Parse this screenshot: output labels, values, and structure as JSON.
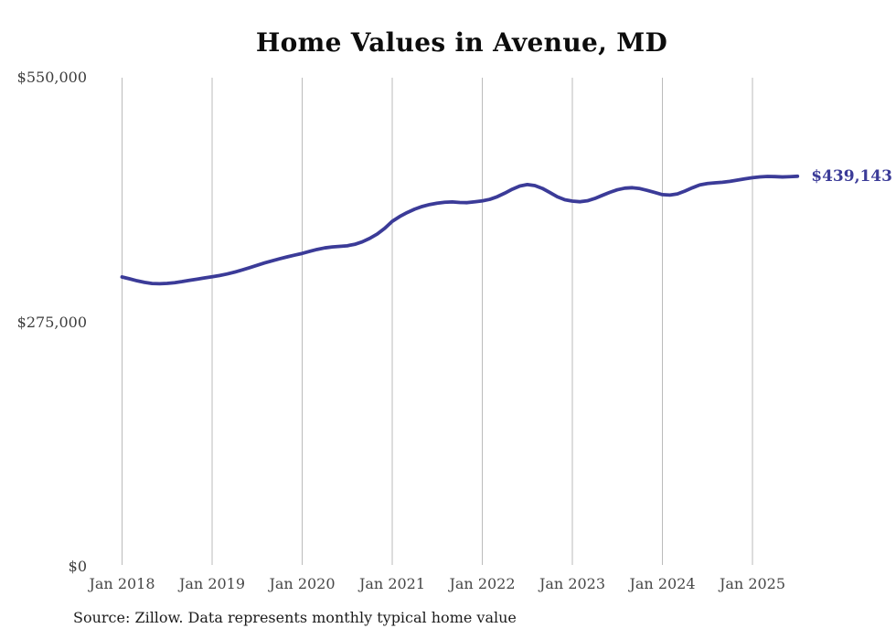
{
  "chart_data": {
    "type": "line",
    "title": "Home Values in Avenue, MD",
    "source_note": "Source: Zillow. Data represents monthly typical home value",
    "end_label": "$439,143",
    "series_name": "Typical home value",
    "ylim": [
      0,
      550000
    ],
    "grid": "vertical-only",
    "legend": "none",
    "colors": {
      "line": "#3b3b98",
      "end_label": "#3b3b98",
      "grid": "#bbbbbb",
      "y_tick_text": "#3d3d3d",
      "x_tick_text": "#474747",
      "title_text": "#0d0d0d",
      "source_text": "#1c1c1c"
    },
    "y_ticks": [
      {
        "label": "$0",
        "value": 0
      },
      {
        "label": "$275,000",
        "value": 275000
      },
      {
        "label": "$550,000",
        "value": 550000
      }
    ],
    "x_ticks": [
      {
        "label": "Jan 2018",
        "month_index": 0
      },
      {
        "label": "Jan 2019",
        "month_index": 12
      },
      {
        "label": "Jan 2020",
        "month_index": 24
      },
      {
        "label": "Jan 2021",
        "month_index": 36
      },
      {
        "label": "Jan 2022",
        "month_index": 48
      },
      {
        "label": "Jan 2023",
        "month_index": 60
      },
      {
        "label": "Jan 2024",
        "month_index": 72
      },
      {
        "label": "Jan 2025",
        "month_index": 84
      }
    ],
    "x": [
      "2018-01",
      "2018-02",
      "2018-03",
      "2018-04",
      "2018-05",
      "2018-06",
      "2018-07",
      "2018-08",
      "2018-09",
      "2018-10",
      "2018-11",
      "2018-12",
      "2019-01",
      "2019-02",
      "2019-03",
      "2019-04",
      "2019-05",
      "2019-06",
      "2019-07",
      "2019-08",
      "2019-09",
      "2019-10",
      "2019-11",
      "2019-12",
      "2020-01",
      "2020-02",
      "2020-03",
      "2020-04",
      "2020-05",
      "2020-06",
      "2020-07",
      "2020-08",
      "2020-09",
      "2020-10",
      "2020-11",
      "2020-12",
      "2021-01",
      "2021-02",
      "2021-03",
      "2021-04",
      "2021-05",
      "2021-06",
      "2021-07",
      "2021-08",
      "2021-09",
      "2021-10",
      "2021-11",
      "2021-12",
      "2022-01",
      "2022-02",
      "2022-03",
      "2022-04",
      "2022-05",
      "2022-06",
      "2022-07",
      "2022-08",
      "2022-09",
      "2022-10",
      "2022-11",
      "2022-12",
      "2023-01",
      "2023-02",
      "2023-03",
      "2023-04",
      "2023-05",
      "2023-06",
      "2023-07",
      "2023-08",
      "2023-09",
      "2023-10",
      "2023-11",
      "2023-12",
      "2024-01",
      "2024-02",
      "2024-03",
      "2024-04",
      "2024-05",
      "2024-06",
      "2024-07",
      "2024-08",
      "2024-09",
      "2024-10",
      "2024-11",
      "2024-12",
      "2025-01",
      "2025-02",
      "2025-03",
      "2025-04",
      "2025-05",
      "2025-06",
      "2025-07"
    ],
    "values": [
      325900,
      323800,
      321600,
      319800,
      318600,
      318300,
      318700,
      319500,
      320700,
      322100,
      323500,
      324900,
      326200,
      327600,
      329300,
      331400,
      333800,
      336400,
      339100,
      341700,
      344100,
      346400,
      348500,
      350500,
      352400,
      354700,
      356900,
      358600,
      359700,
      360300,
      361000,
      362600,
      365400,
      369300,
      374200,
      380600,
      388500,
      393900,
      398400,
      402200,
      405200,
      407400,
      408900,
      409900,
      410300,
      409700,
      409500,
      410400,
      411500,
      413200,
      416200,
      420200,
      424600,
      428200,
      429800,
      428700,
      425500,
      420900,
      416100,
      412800,
      411200,
      410500,
      411600,
      414200,
      417700,
      421100,
      424000,
      425800,
      426300,
      425300,
      423200,
      420900,
      418500,
      418000,
      419300,
      422500,
      426200,
      429500,
      431000,
      431800,
      432400,
      433400,
      434800,
      436300,
      437600,
      438500,
      439000,
      438800,
      438400,
      438700,
      439143
    ]
  }
}
